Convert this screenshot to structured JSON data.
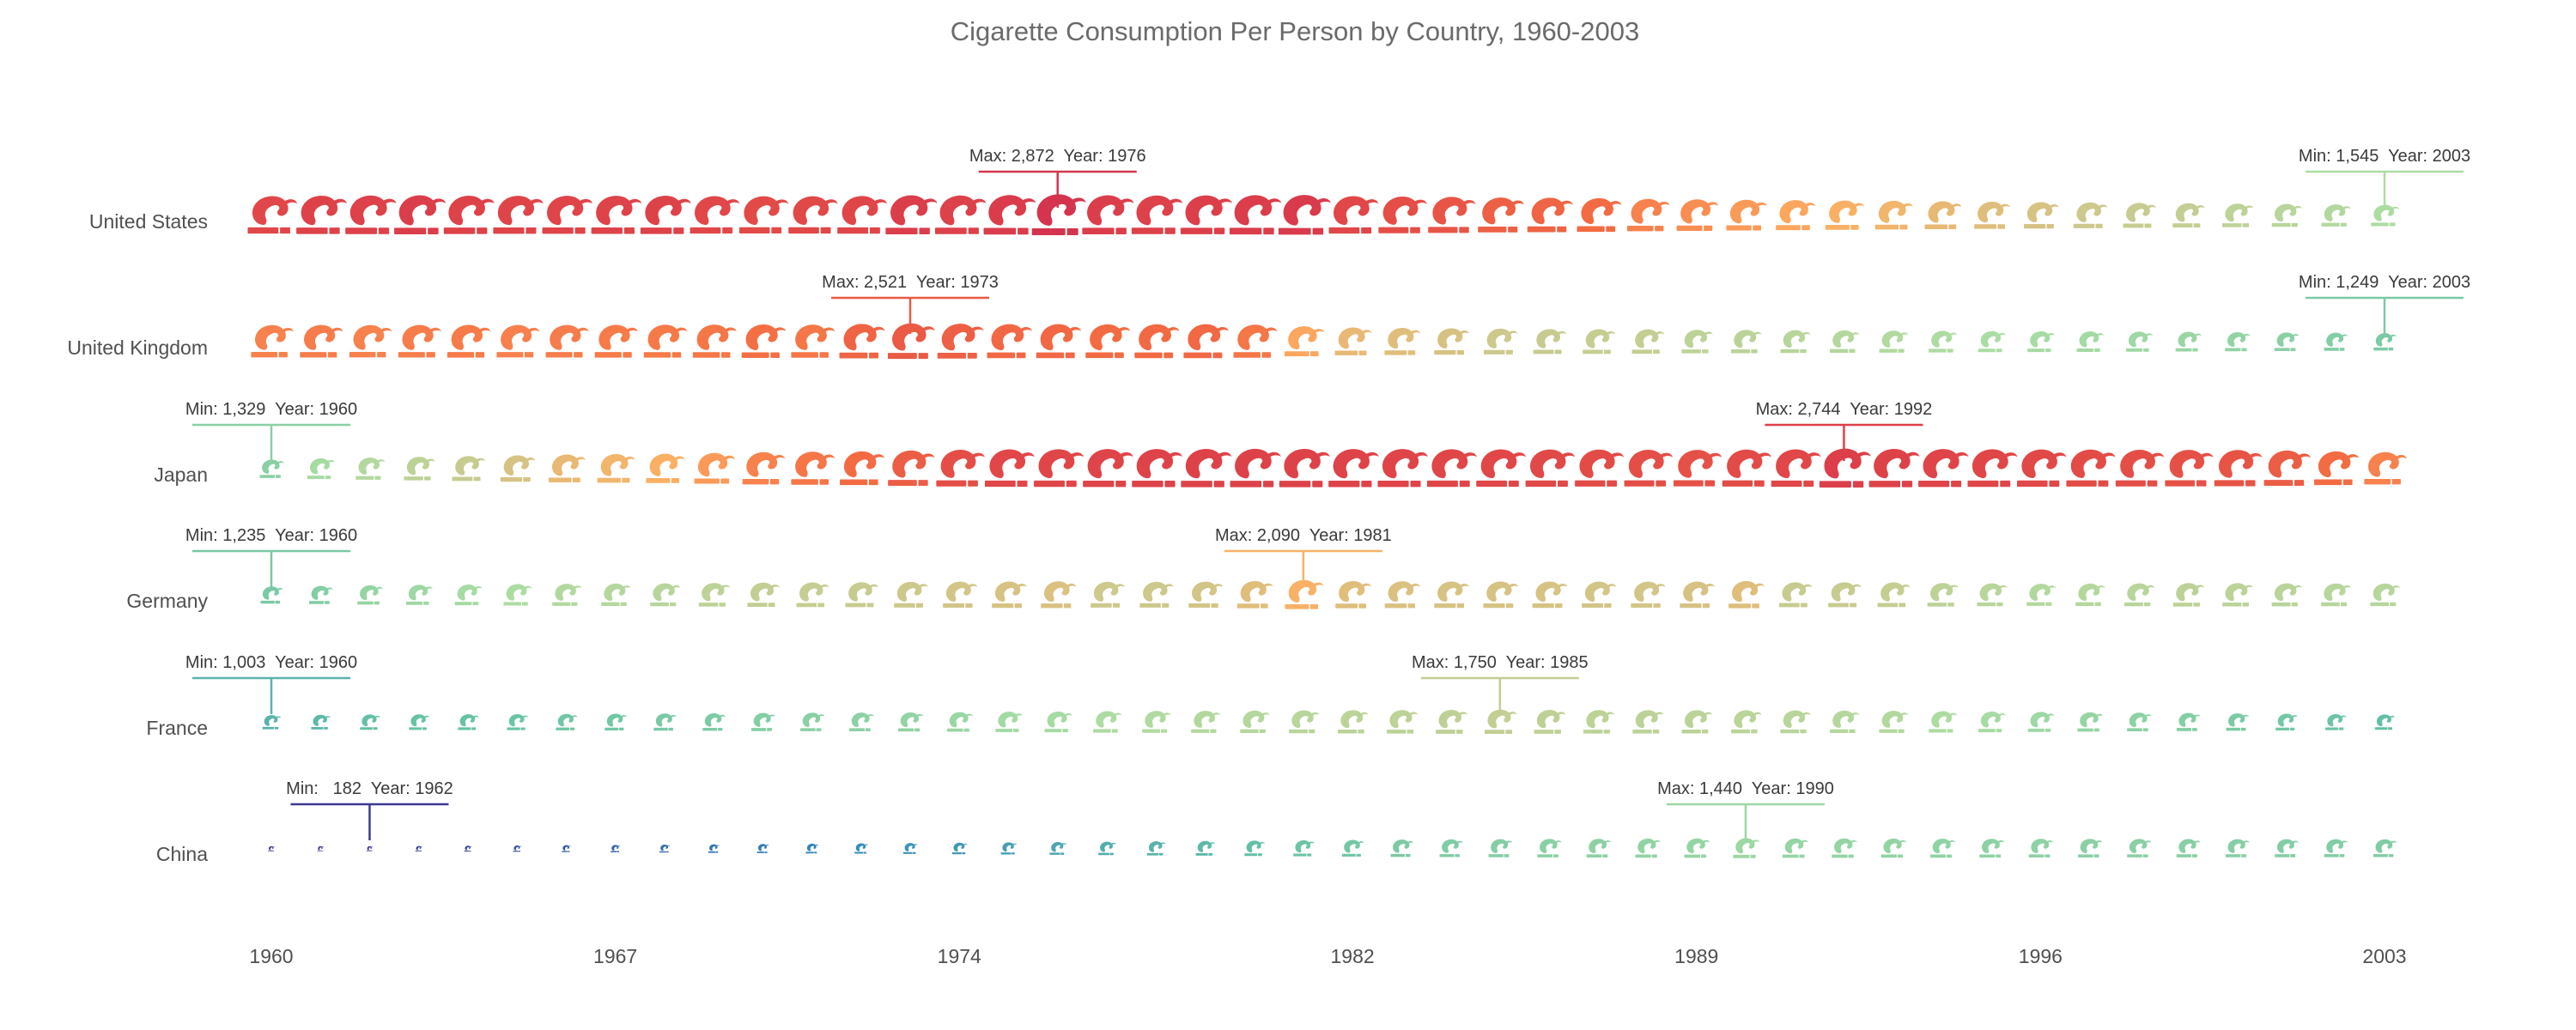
{
  "chart_data": {
    "type": "scatter",
    "title": "Cigarette Consumption Per Person by Country, 1960-2003",
    "x_ticks": [
      "1960",
      "1967",
      "1974",
      "1982",
      "1989",
      "1996",
      "2003"
    ],
    "x_range": [
      1960,
      2003
    ],
    "grid": false,
    "legend": "none",
    "marker_icon": "cigarette-smoke-icon",
    "countries": [
      {
        "name": "United States",
        "values": [
          2650,
          2700,
          2720,
          2750,
          2700,
          2680,
          2680,
          2690,
          2700,
          2650,
          2630,
          2640,
          2660,
          2750,
          2720,
          2780,
          2872,
          2750,
          2720,
          2740,
          2760,
          2790,
          2650,
          2600,
          2550,
          2480,
          2450,
          2400,
          2300,
          2250,
          2200,
          2150,
          2100,
          2050,
          2000,
          1950,
          1900,
          1850,
          1800,
          1750,
          1700,
          1650,
          1600,
          1545
        ],
        "max_label": "Max: 2,872  Year: 1976",
        "min_label": "Min: 1,545  Year: 2003"
      },
      {
        "name": "United Kingdom",
        "values": [
          2300,
          2320,
          2300,
          2320,
          2330,
          2310,
          2320,
          2330,
          2340,
          2350,
          2380,
          2350,
          2450,
          2521,
          2480,
          2420,
          2420,
          2400,
          2410,
          2420,
          2350,
          2150,
          2000,
          1950,
          1900,
          1850,
          1800,
          1780,
          1760,
          1700,
          1680,
          1650,
          1620,
          1590,
          1560,
          1520,
          1500,
          1480,
          1450,
          1420,
          1380,
          1340,
          1300,
          1249
        ],
        "max_label": "Max: 2,521  Year: 1973",
        "min_label": "Min: 1,249  Year: 2003"
      },
      {
        "name": "Japan",
        "values": [
          1329,
          1500,
          1600,
          1700,
          1800,
          1900,
          2000,
          2050,
          2100,
          2200,
          2300,
          2350,
          2400,
          2500,
          2600,
          2650,
          2660,
          2680,
          2690,
          2700,
          2710,
          2700,
          2690,
          2680,
          2660,
          2650,
          2640,
          2620,
          2600,
          2580,
          2620,
          2650,
          2744,
          2700,
          2680,
          2660,
          2640,
          2620,
          2600,
          2580,
          2560,
          2500,
          2400,
          2300
        ],
        "max_label": "Max: 2,744  Year: 1992",
        "min_label": "Min: 1,329  Year: 1960"
      },
      {
        "name": "Germany",
        "values": [
          1235,
          1300,
          1400,
          1450,
          1500,
          1550,
          1600,
          1620,
          1650,
          1700,
          1750,
          1780,
          1800,
          1850,
          1880,
          1900,
          1920,
          1850,
          1850,
          1880,
          1950,
          2090,
          1950,
          1920,
          1900,
          1900,
          1900,
          1880,
          1880,
          1900,
          1950,
          1800,
          1800,
          1780,
          1700,
          1650,
          1600,
          1620,
          1650,
          1700,
          1680,
          1660,
          1640,
          1630
        ],
        "max_label": "Max: 2,090  Year: 1981",
        "min_label": "Min: 1,235  Year: 1960"
      },
      {
        "name": "France",
        "values": [
          1003,
          1050,
          1100,
          1120,
          1130,
          1150,
          1180,
          1200,
          1230,
          1260,
          1300,
          1330,
          1350,
          1380,
          1420,
          1480,
          1500,
          1560,
          1580,
          1600,
          1620,
          1650,
          1680,
          1700,
          1720,
          1750,
          1720,
          1700,
          1690,
          1680,
          1670,
          1650,
          1620,
          1600,
          1550,
          1500,
          1450,
          1400,
          1350,
          1300,
          1250,
          1200,
          1150,
          1100
        ],
        "max_label": "Max: 1,750  Year: 1985",
        "min_label": "Min: 1,003  Year: 1960"
      },
      {
        "name": "China",
        "values": [
          200,
          190,
          182,
          250,
          300,
          350,
          400,
          450,
          500,
          550,
          600,
          650,
          700,
          750,
          800,
          850,
          900,
          950,
          1000,
          1050,
          1100,
          1150,
          1200,
          1250,
          1280,
          1300,
          1330,
          1350,
          1380,
          1400,
          1440,
          1400,
          1390,
          1380,
          1370,
          1360,
          1350,
          1340,
          1330,
          1320,
          1310,
          1300,
          1290,
          1280
        ],
        "max_label": "Max: 1,440  Year: 1990",
        "min_label": "Min:   182  Year: 1962"
      }
    ]
  }
}
